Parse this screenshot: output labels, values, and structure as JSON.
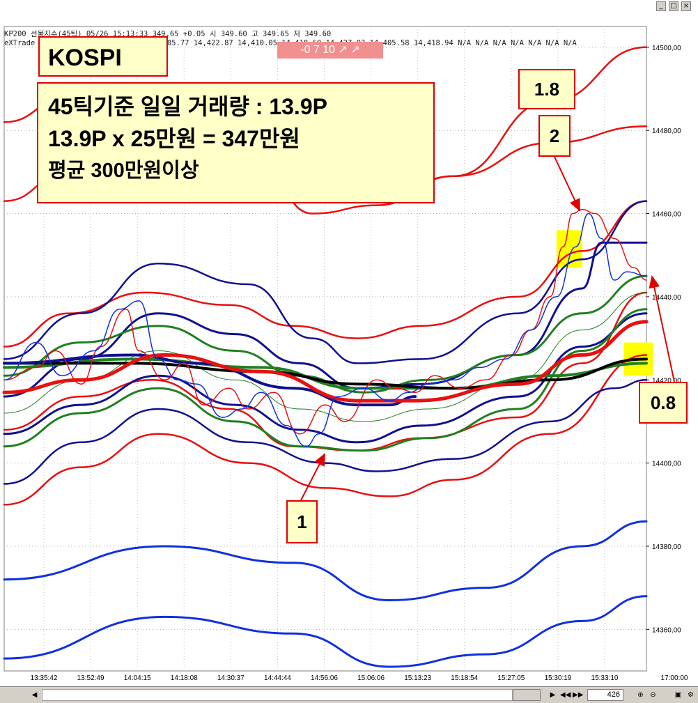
{
  "header": {
    "line1": "KP200 선물지수(45틱) 05/26 15:13:33  349.65 +0.05  시 349.60 고 349.65 저 349.60",
    "line2": "eXTrade 05/26 15:13:33 14,414.32 14,405.77 14,422.87 14,410.05 14,418.60 14,427.07 14,405.58 14,418.94 N/A N/A N/A N/A N/A N/A N/A",
    "pink_text": "-0 7 10 ↗ ↗"
  },
  "annotations": {
    "kospi": "KOSPI",
    "info_line1": "45틱기준 일일 거래량 : 13.9P",
    "info_line2": "13.9P x 25만원 = 347만원",
    "info_line3": "평균 300만원이상",
    "label_1": "1",
    "label_2": "2",
    "label_18": "1.8",
    "label_08": "0.8"
  },
  "bottombar": {
    "zoom_value": "426"
  },
  "colors": {
    "red": "#e81010",
    "navy": "#101090",
    "green": "#208020",
    "blue": "#1030e0",
    "black": "#000000",
    "highlight": "#ffff00"
  },
  "chart_data": {
    "type": "line",
    "title": "",
    "ylim": [
      14350,
      14505
    ],
    "yticks": [
      14360,
      14380,
      14400,
      14420,
      14440,
      14460,
      14480,
      14500
    ],
    "ytick_labels": [
      "14360,00",
      "14380,00",
      "14400,00",
      "14420,00",
      "14440,00",
      "14460,00",
      "14480,00",
      "14500,00"
    ],
    "x_tick_labels": [
      "13:35:42",
      "13:52:49",
      "14:04:15",
      "14:18:08",
      "14:30:37",
      "14:44:44",
      "14:56:06",
      "15:06:06",
      "15:13:23",
      "15:18:54",
      "15:27:05",
      "15:30:19",
      "15:33:10",
      "17:00:00"
    ],
    "x_index_range": [
      0,
      100
    ],
    "series": [
      {
        "color": "red",
        "width": 2.5,
        "x": [
          0,
          10,
          25,
          40,
          48,
          58,
          70,
          85,
          100
        ],
        "y": [
          14482,
          14488,
          14490,
          14481,
          14468,
          14463,
          14469,
          14487,
          14500
        ]
      },
      {
        "color": "red",
        "width": 2.5,
        "x": [
          0,
          10,
          25,
          40,
          48,
          58,
          70,
          85,
          100
        ],
        "y": [
          14463,
          14470,
          14475,
          14470,
          14460,
          14462,
          14469,
          14477,
          14481
        ]
      },
      {
        "color": "red",
        "width": 2.5,
        "x": [
          0,
          10,
          22,
          35,
          45,
          55,
          65,
          80,
          90,
          100
        ],
        "y": [
          14428,
          14436,
          14441,
          14438,
          14433,
          14430,
          14433,
          14440,
          14451,
          14463
        ]
      },
      {
        "color": "red",
        "width": 2.5,
        "x": [
          0,
          12,
          23,
          35,
          45,
          55,
          65,
          80,
          90,
          100
        ],
        "y": [
          14408,
          14416,
          14420,
          14413,
          14404,
          14403,
          14406,
          14411,
          14424,
          14441
        ]
      },
      {
        "color": "red",
        "width": 2.5,
        "x": [
          0,
          12,
          24,
          38,
          50,
          60,
          70,
          85,
          100
        ],
        "y": [
          14390,
          14399,
          14407,
          14400,
          14394,
          14392,
          14396,
          14407,
          14426
        ]
      },
      {
        "color": "navy",
        "width": 2.5,
        "x": [
          0,
          12,
          24,
          38,
          48,
          55,
          65,
          80,
          90,
          100
        ],
        "y": [
          14425,
          14436,
          14448,
          14443,
          14430,
          14424,
          14425,
          14436,
          14449,
          14463
        ]
      },
      {
        "color": "navy",
        "width": 3,
        "x": [
          0,
          12,
          24,
          36,
          46,
          55,
          65,
          80,
          90,
          93,
          100
        ],
        "y": [
          14416,
          14425,
          14436,
          14431,
          14424,
          14418,
          14419,
          14426,
          14442,
          14453,
          14453
        ]
      },
      {
        "color": "navy",
        "width": 3,
        "x": [
          0,
          12,
          24,
          36,
          46,
          55,
          65,
          80,
          90,
          100
        ],
        "y": [
          14407,
          14414,
          14421,
          14414,
          14408,
          14405,
          14409,
          14416,
          14428,
          14436
        ]
      },
      {
        "color": "navy",
        "width": 2.5,
        "x": [
          0,
          12,
          24,
          38,
          50,
          58,
          70,
          85,
          95,
          100
        ],
        "y": [
          14395,
          14405,
          14413,
          14405,
          14400,
          14398,
          14401,
          14410,
          14418,
          14420
        ]
      },
      {
        "color": "green",
        "width": 3,
        "x": [
          0,
          12,
          24,
          36,
          46,
          56,
          66,
          80,
          90,
          100
        ],
        "y": [
          14421,
          14429,
          14433,
          14427,
          14421,
          14417,
          14420,
          14426,
          14436,
          14445
        ]
      },
      {
        "color": "green",
        "width": 3,
        "x": [
          0,
          12,
          24,
          36,
          46,
          56,
          66,
          80,
          90,
          100
        ],
        "y": [
          14404,
          14412,
          14418,
          14410,
          14404,
          14403,
          14406,
          14413,
          14427,
          14437
        ]
      },
      {
        "color": "green",
        "width": 1,
        "x": [
          0,
          12,
          24,
          36,
          46,
          56,
          66,
          80,
          90,
          100
        ],
        "y": [
          14412,
          14420,
          14427,
          14420,
          14413,
          14410,
          14413,
          14420,
          14432,
          14441
        ]
      },
      {
        "color": "green",
        "width": 4,
        "x": [
          0,
          20,
          40,
          55,
          70,
          85,
          100
        ],
        "y": [
          14423,
          14425,
          14423,
          14418,
          14418,
          14421,
          14424
        ]
      },
      {
        "color": "black",
        "width": 4,
        "x": [
          0,
          20,
          40,
          55,
          70,
          85,
          100
        ],
        "y": [
          14424,
          14424,
          14422,
          14419,
          14418,
          14420,
          14425
        ]
      },
      {
        "color": "navy",
        "width": 4,
        "x": [
          0,
          20,
          30,
          45,
          55,
          60,
          64
        ],
        "y": [
          14424,
          14426,
          14424,
          14418,
          14414,
          14414,
          14416
        ]
      },
      {
        "color": "red",
        "width": 5,
        "x": [
          0,
          12,
          25,
          40,
          55,
          64,
          80,
          90,
          100
        ],
        "y": [
          14417,
          14420,
          14426,
          14422,
          14415,
          14415,
          14419,
          14426,
          14434
        ]
      },
      {
        "color": "blue",
        "width": 3,
        "x": [
          0,
          25,
          45,
          60,
          75,
          90,
          100
        ],
        "y": [
          14372,
          14380,
          14376,
          14367,
          14370,
          14380,
          14386
        ]
      },
      {
        "color": "blue",
        "width": 3,
        "x": [
          0,
          25,
          45,
          60,
          75,
          90,
          100
        ],
        "y": [
          14353,
          14363,
          14359,
          14351,
          14354,
          14362,
          14368
        ]
      },
      {
        "color": "red",
        "width": 1.5,
        "x": [
          0,
          5,
          8,
          12,
          15,
          19,
          21,
          25,
          28,
          31,
          35,
          38,
          42,
          46,
          50,
          53,
          58,
          61,
          64,
          67,
          71,
          75,
          79,
          82,
          85,
          87,
          88.5,
          90,
          92,
          95,
          98,
          100
        ],
        "y": [
          14420,
          14423,
          14427,
          14419,
          14428,
          14437,
          14427,
          14420,
          14424,
          14414,
          14418,
          14413,
          14417,
          14407,
          14414,
          14410,
          14420,
          14418,
          14417,
          14421,
          14418,
          14420,
          14426,
          14432,
          14440,
          14452,
          14460,
          14461,
          14460,
          14454,
          14447,
          14444
        ]
      },
      {
        "color": "blue",
        "width": 1.5,
        "x": [
          0,
          5,
          9,
          14,
          18,
          21,
          24,
          27,
          30,
          34,
          37,
          40,
          44,
          47,
          49,
          52,
          56,
          60,
          63,
          66,
          70,
          74,
          78,
          82,
          86,
          89,
          91,
          93,
          95,
          97,
          100
        ],
        "y": [
          14420,
          14429,
          14421,
          14427,
          14437,
          14439,
          14425,
          14420,
          14419,
          14411,
          14413,
          14417,
          14409,
          14404,
          14407,
          14416,
          14418,
          14415,
          14417,
          14419,
          14420,
          14423,
          14425,
          14432,
          14440,
          14452,
          14460,
          14454,
          14444,
          14446,
          14445
        ]
      }
    ],
    "highlights": [
      {
        "x": [
          86,
          90
        ],
        "y": [
          14447,
          14456
        ]
      },
      {
        "x": [
          96.5,
          101
        ],
        "y": [
          14421,
          14429
        ]
      }
    ]
  }
}
